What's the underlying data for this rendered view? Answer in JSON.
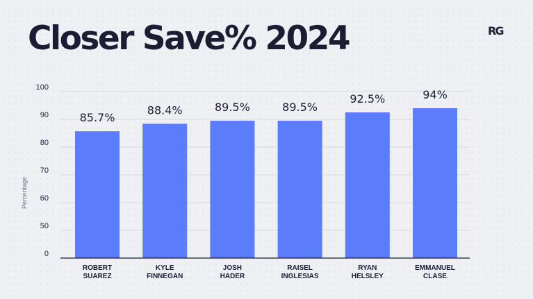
{
  "header": {
    "title": "Closer Save% 2024",
    "logo_text": "RG"
  },
  "colors": {
    "bar": "#5b7dfc",
    "text": "#1c1d33",
    "grid": "#d6d9de",
    "background": "#eef0f3"
  },
  "chart_data": {
    "type": "bar",
    "title": "Closer Save% 2024",
    "ylabel": "Percentage",
    "xlabel": "",
    "categories": [
      [
        "ROBERT",
        "SUAREZ"
      ],
      [
        "KYLE",
        "FINNEGAN"
      ],
      [
        "JOSH",
        "HADER"
      ],
      [
        "RAISEL",
        "INGLESIAS"
      ],
      [
        "RYAN",
        "HELSLEY"
      ],
      [
        "EMMANUEL",
        "CLASE"
      ]
    ],
    "values": [
      85.7,
      88.4,
      89.5,
      89.5,
      92.5,
      94
    ],
    "data_labels": [
      "85.7%",
      "88.4%",
      "89.5%",
      "89.5%",
      "92.5%",
      "94%"
    ],
    "ylim": [
      0,
      100
    ],
    "yticks": [
      0,
      50,
      60,
      70,
      80,
      90,
      100
    ],
    "grid": true,
    "legend": "none"
  }
}
